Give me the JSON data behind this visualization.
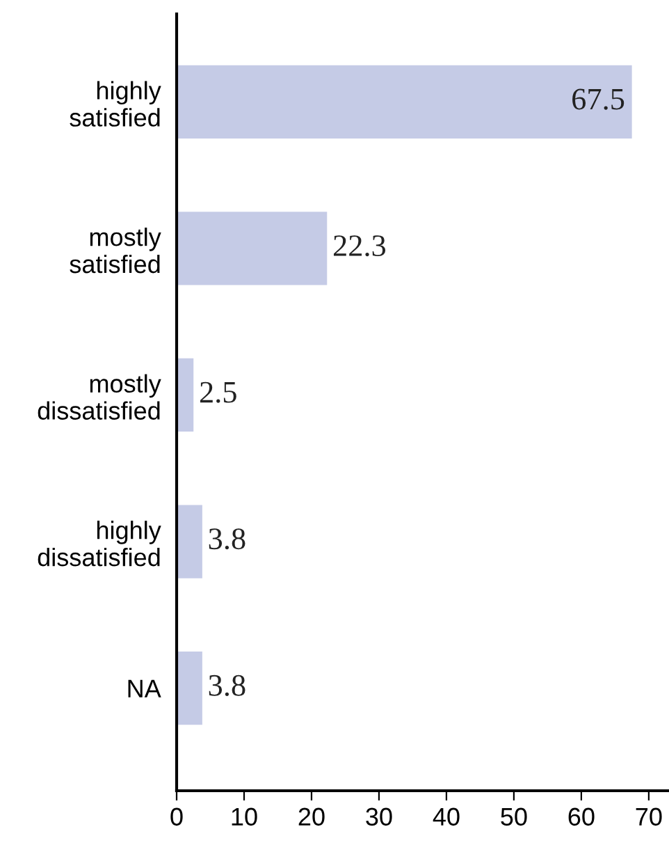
{
  "chart_data": {
    "type": "bar",
    "orientation": "horizontal",
    "categories": [
      "highly\nsatisfied",
      "mostly\nsatisfied",
      "mostly\ndissatisfied",
      "highly\ndissatisfied",
      "NA"
    ],
    "values": [
      67.5,
      22.3,
      2.5,
      3.8,
      3.8
    ],
    "color": "#c5cbe6",
    "xlim": [
      0,
      73
    ],
    "xticks": [
      0,
      10,
      20,
      30,
      40,
      50,
      60,
      70
    ],
    "grid": false,
    "data_labels": true
  }
}
